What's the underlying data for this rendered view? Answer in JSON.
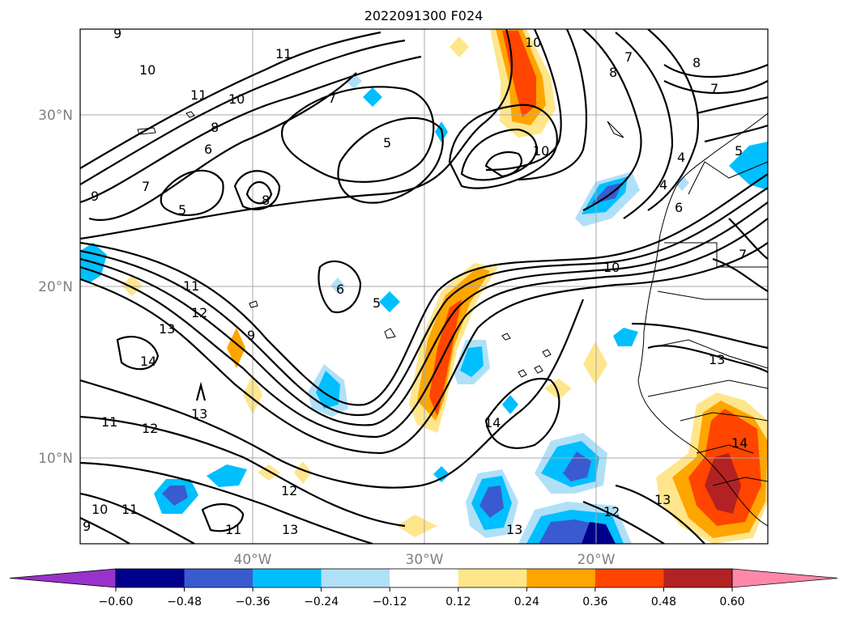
{
  "title": "2022091300 F024",
  "x_ticks": [
    "40°W",
    "30°W",
    "20°W"
  ],
  "y_ticks": [
    "30°N",
    "20°N",
    "10°N"
  ],
  "colorbar": {
    "colors": [
      "#9932cc",
      "#00008b",
      "#3a5bd0",
      "#00bfff",
      "#b0e0f8",
      "#ffffff",
      "#ffe68c",
      "#ffa500",
      "#ff4500",
      "#b22222",
      "#ff88aa"
    ],
    "labels": [
      "−0.60",
      "−0.48",
      "−0.36",
      "−0.24",
      "−0.12",
      "0.12",
      "0.24",
      "0.36",
      "0.48",
      "0.60"
    ]
  },
  "contour_labels": [
    "9",
    "10",
    "11",
    "11",
    "10",
    "8",
    "6",
    "7",
    "9",
    "5",
    "8",
    "5",
    "7",
    "5",
    "6",
    "7",
    "8",
    "8",
    "7",
    "4",
    "4",
    "6",
    "5",
    "10",
    "10",
    "10",
    "11",
    "12",
    "13",
    "14",
    "9",
    "13",
    "11",
    "12",
    "14",
    "13",
    "12",
    "11",
    "11",
    "9",
    "10",
    "12",
    "13",
    "14",
    "13",
    "13",
    "7"
  ]
}
